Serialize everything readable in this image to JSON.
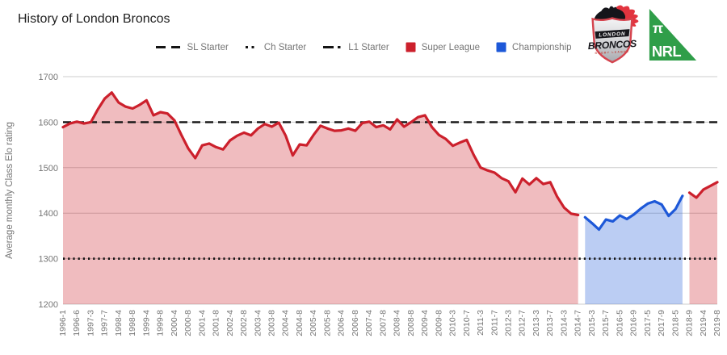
{
  "title": "History of London Broncos",
  "legend": [
    {
      "label": "SL Starter",
      "swatch": "dashed",
      "color": "#141414"
    },
    {
      "label": "Ch Starter",
      "swatch": "dotted",
      "color": "#141414"
    },
    {
      "label": "L1 Starter",
      "swatch": "dashdot",
      "color": "#141414"
    },
    {
      "label": "Super League",
      "swatch": "box",
      "color": "#cc202c"
    },
    {
      "label": "Championship",
      "swatch": "box",
      "color": "#1d58d8"
    }
  ],
  "logos": {
    "broncos": {
      "line1": "LONDON",
      "line2": "BRONCOS",
      "line3": "RUGBY LEAGUE"
    },
    "nrl": {
      "pi": "π",
      "label": "NRL"
    }
  },
  "colors": {
    "super_league_red": "#cc202c",
    "championship_blue": "#1d58d8",
    "starter_line": "#141414",
    "grid": "#cccccc",
    "axis_text": "#757575",
    "title_text": "#212121",
    "nrl_green": "#2f9e49",
    "broncos_badge_red": "#d5444e"
  },
  "chart_data": {
    "type": "area",
    "title": "History of London Broncos",
    "xlabel": "",
    "ylabel": "Average monthly Class Elo rating",
    "ylim": [
      1200,
      1700
    ],
    "yticks": [
      1200,
      1300,
      1400,
      1500,
      1600,
      1700
    ],
    "grid": true,
    "legend_position": "top",
    "x_tick_labels": [
      "1996-1",
      "1996-6",
      "1997-3",
      "1997-7",
      "1998-4",
      "1998-8",
      "1999-4",
      "1999-8",
      "2000-4",
      "2000-8",
      "2001-4",
      "2001-8",
      "2002-4",
      "2002-8",
      "2003-4",
      "2003-8",
      "2004-4",
      "2004-8",
      "2005-4",
      "2005-8",
      "2006-4",
      "2006-8",
      "2007-4",
      "2007-8",
      "2008-4",
      "2008-8",
      "2009-4",
      "2009-8",
      "2010-3",
      "2010-7",
      "2011-3",
      "2011-7",
      "2012-3",
      "2012-7",
      "2013-3",
      "2013-7",
      "2014-3",
      "2014-7",
      "2015-3",
      "2015-7",
      "2016-5",
      "2016-9",
      "2017-5",
      "2017-9",
      "2018-5",
      "2018-9",
      "2019-4",
      "2019-8"
    ],
    "points_per_tick_interval": 2,
    "total_points": 95,
    "reference_lines": [
      {
        "name": "SL Starter",
        "value": 1600,
        "style": "dashed"
      },
      {
        "name": "Ch Starter",
        "value": 1300,
        "style": "dotted"
      }
    ],
    "segments": [
      {
        "league": "Super League",
        "color": "#cc202c",
        "start_index": 0,
        "values": [
          1589,
          1597,
          1601,
          1597,
          1600,
          1628,
          1652,
          1665,
          1643,
          1634,
          1630,
          1638,
          1648,
          1615,
          1622,
          1619,
          1604,
          1572,
          1542,
          1521,
          1549,
          1553,
          1545,
          1540,
          1560,
          1570,
          1577,
          1571,
          1586,
          1596,
          1590,
          1599,
          1570,
          1527,
          1551,
          1549,
          1572,
          1592,
          1586,
          1581,
          1582,
          1586,
          1581,
          1598,
          1601,
          1589,
          1593,
          1584,
          1606,
          1590,
          1600,
          1611,
          1615,
          1589,
          1572,
          1563,
          1548,
          1555,
          1561,
          1528,
          1500,
          1494,
          1489,
          1477,
          1470,
          1446,
          1476,
          1463,
          1477,
          1464,
          1468,
          1436,
          1412,
          1399,
          1396
        ]
      },
      {
        "league": "Championship",
        "color": "#1d58d8",
        "start_index": 75,
        "values": [
          1391,
          1378,
          1364,
          1386,
          1382,
          1395,
          1387,
          1397,
          1410,
          1421,
          1426,
          1419,
          1394,
          1409,
          1438
        ]
      },
      {
        "league": "Super League",
        "color": "#cc202c",
        "start_index": 90,
        "values": [
          1445,
          1434,
          1452,
          1460,
          1468
        ]
      }
    ]
  }
}
